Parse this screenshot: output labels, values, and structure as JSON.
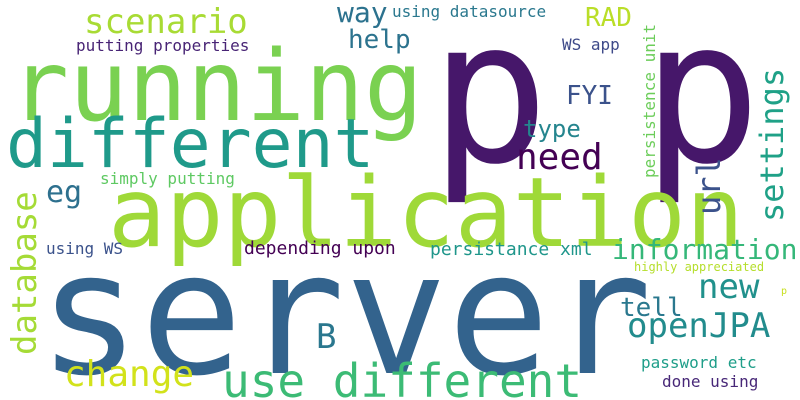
{
  "words": {
    "server": {
      "text": "server",
      "color": "#33638d"
    },
    "p_left": {
      "text": "p",
      "color": "#46176a"
    },
    "p_right": {
      "text": "p",
      "color": "#46176a"
    },
    "application": {
      "text": "application",
      "color": "#9fd938"
    },
    "running": {
      "text": "running",
      "color": "#7ad151"
    },
    "different": {
      "text": "different",
      "color": "#1f9a8a"
    },
    "use_different": {
      "text": "use different",
      "color": "#3cbb75"
    },
    "scenario": {
      "text": "scenario",
      "color": "#a8db34"
    },
    "way": {
      "text": "way",
      "color": "#2c728e"
    },
    "using_datasource": {
      "text": "using datasource",
      "color": "#2a788e"
    },
    "rad": {
      "text": "RAD",
      "color": "#bade28"
    },
    "persistence_unit": {
      "text": "persistence unit",
      "color": "#6ccd5a"
    },
    "putting_properties": {
      "text": "putting properties",
      "color": "#482475"
    },
    "help": {
      "text": "help",
      "color": "#2c738e"
    },
    "ws_app": {
      "text": "WS app",
      "color": "#3e4a89"
    },
    "settings": {
      "text": "settings",
      "color": "#1fa187"
    },
    "fyi": {
      "text": "FYI",
      "color": "#3b528b"
    },
    "type": {
      "text": "type",
      "color": "#25858e"
    },
    "need": {
      "text": "need",
      "color": "#440154"
    },
    "url": {
      "text": "url",
      "color": "#3b528b"
    },
    "simply_putting": {
      "text": "simply putting",
      "color": "#5ec962"
    },
    "eg": {
      "text": "eg",
      "color": "#2d708e"
    },
    "database": {
      "text": "database",
      "color": "#a5db36"
    },
    "information": {
      "text": "information",
      "color": "#35b779"
    },
    "depending_upon": {
      "text": "depending upon",
      "color": "#440154"
    },
    "persistance_xml": {
      "text": "persistance xml",
      "color": "#1f968b"
    },
    "using_ws": {
      "text": "using WS",
      "color": "#3b528b"
    },
    "highly_appreciated": {
      "text": "highly appreciated",
      "color": "#b5de2b"
    },
    "new": {
      "text": "new",
      "color": "#21918c"
    },
    "tell": {
      "text": "tell",
      "color": "#2a788e"
    },
    "openjpa": {
      "text": "openJPA",
      "color": "#228c8d"
    },
    "b": {
      "text": "B",
      "color": "#2a778e"
    },
    "change": {
      "text": "change",
      "color": "#d2e21b"
    },
    "password_etc": {
      "text": "password etc",
      "color": "#1f9e89"
    },
    "done_using": {
      "text": "done using",
      "color": "#482878"
    },
    "p_small": {
      "text": "p",
      "color": "#c8e020"
    }
  }
}
